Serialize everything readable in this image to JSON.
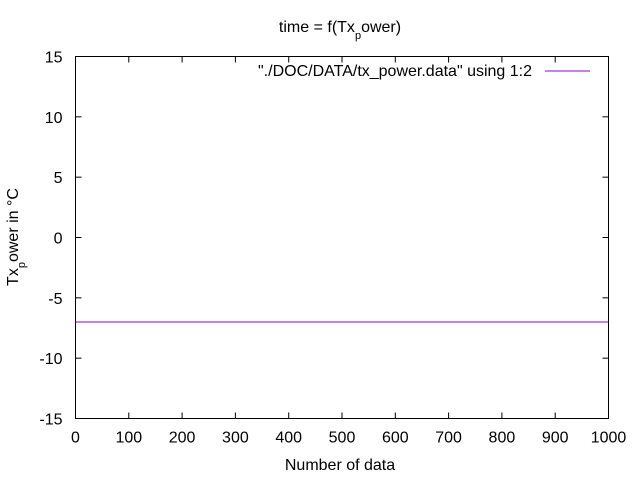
{
  "chart_data": {
    "type": "line",
    "title": {
      "pre": "time = f(Tx",
      "sub": "p",
      "post": "ower)"
    },
    "ylabel": {
      "pre": "Tx",
      "sub": "p",
      "post": "ower in °C"
    },
    "xlabel": "Number of data",
    "xlim": [
      0,
      1000
    ],
    "ylim": [
      -15,
      15
    ],
    "xticks": [
      0,
      100,
      200,
      300,
      400,
      500,
      600,
      700,
      800,
      900,
      1000
    ],
    "xtick_labels": [
      "0",
      "100",
      "200",
      "300",
      "400",
      "500",
      "600",
      "700",
      "800",
      "900",
      "1000"
    ],
    "yticks": [
      -15,
      -10,
      -5,
      0,
      5,
      10,
      15
    ],
    "ytick_labels": [
      "-15",
      "-10",
      "-5",
      "0",
      "5",
      "10",
      "15"
    ],
    "grid": false,
    "legend_position": "top-right",
    "series": [
      {
        "name": "\"./DOC/DATA/tx_power.data\" using 1:2",
        "color": "#9400d3",
        "x": [
          0,
          1000
        ],
        "y": [
          -7,
          -7
        ]
      }
    ]
  }
}
